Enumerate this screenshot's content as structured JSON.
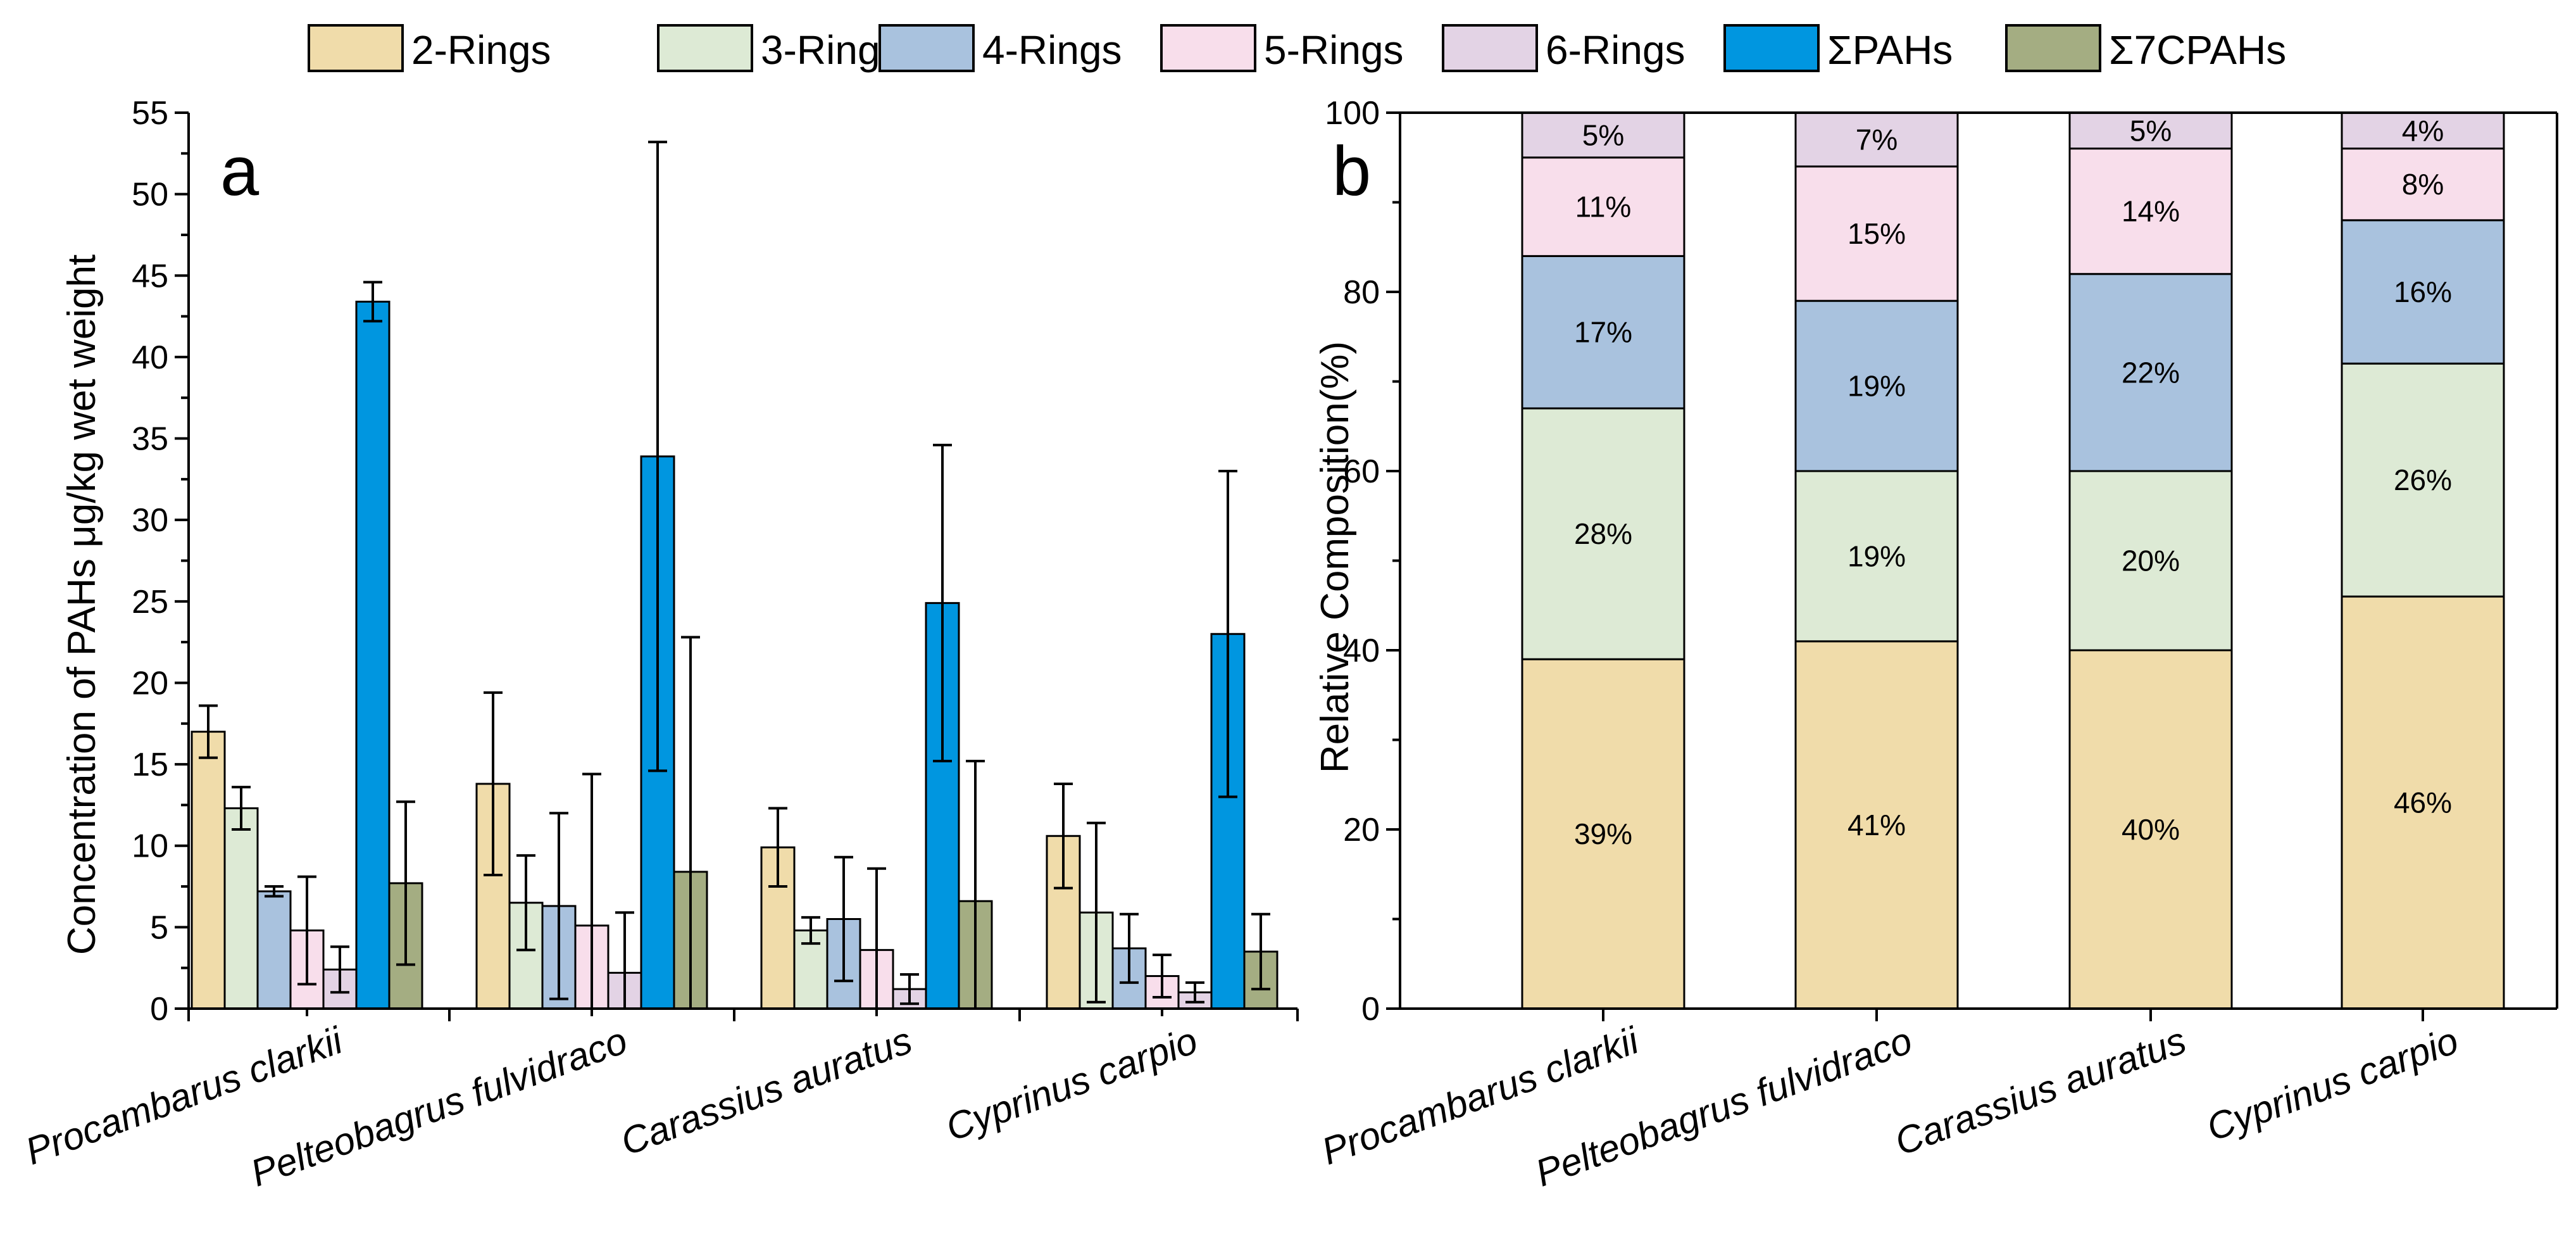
{
  "legend": [
    {
      "name": "2-Rings",
      "color": "#F0DCAA"
    },
    {
      "name": "3-Rings",
      "color": "#DDEAD5"
    },
    {
      "name": "4-Rings",
      "color": "#A9C2DE"
    },
    {
      "name": "5-Rings",
      "color": "#F8DEEB"
    },
    {
      "name": "6-Rings",
      "color": "#E3D3E5"
    },
    {
      "name": "ΣPAHs",
      "color": "#0096E0"
    },
    {
      "name": "Σ7CPAHs",
      "color": "#A4AD82"
    }
  ],
  "chart_data": [
    {
      "type": "bar",
      "panel": "a",
      "ylabel": "Concentration of PAHs μg/kg wet weight",
      "ylim": [
        0,
        55
      ],
      "yticks": [
        "0",
        "5",
        "10",
        "15",
        "20",
        "25",
        "30",
        "35",
        "40",
        "45",
        "50",
        "55"
      ],
      "categories": [
        "Procambarus clarkii",
        "Pelteobagrus fulvidraco",
        "Carassius auratus",
        "Cyprinus carpio"
      ],
      "series": [
        {
          "name": "2-Rings",
          "values": [
            17.0,
            13.8,
            9.9,
            10.6
          ],
          "errors": [
            1.6,
            5.6,
            2.4,
            3.2
          ]
        },
        {
          "name": "3-Rings",
          "values": [
            12.3,
            6.5,
            4.8,
            5.9
          ],
          "errors": [
            1.3,
            2.9,
            0.8,
            5.5
          ]
        },
        {
          "name": "4-Rings",
          "values": [
            7.2,
            6.3,
            5.5,
            3.7
          ],
          "errors": [
            0.3,
            5.7,
            3.8,
            2.1
          ]
        },
        {
          "name": "5-Rings",
          "values": [
            4.8,
            5.1,
            3.6,
            2.0
          ],
          "errors": [
            3.3,
            9.3,
            5.0,
            1.3
          ]
        },
        {
          "name": "6-Rings",
          "values": [
            2.4,
            2.2,
            1.2,
            1.0
          ],
          "errors": [
            1.4,
            3.7,
            0.9,
            0.6
          ]
        },
        {
          "name": "ΣPAHs",
          "values": [
            43.4,
            33.9,
            24.9,
            23.0
          ],
          "errors": [
            1.2,
            19.3,
            9.7,
            10.0
          ]
        },
        {
          "name": "Σ7CPAHs",
          "values": [
            7.7,
            8.4,
            6.6,
            3.5
          ],
          "errors": [
            5.0,
            14.4,
            8.6,
            2.3
          ]
        }
      ]
    },
    {
      "type": "bar",
      "stacked": true,
      "panel": "b",
      "ylabel": "Relative Composition(%)",
      "ylim": [
        0,
        100
      ],
      "yticks": [
        "0",
        "20",
        "40",
        "60",
        "80",
        "100"
      ],
      "categories": [
        "Procambarus clarkii",
        "Pelteobagrus fulvidraco",
        "Carassius auratus",
        "Cyprinus carpio"
      ],
      "series": [
        {
          "name": "2-Rings",
          "values": [
            39,
            41,
            40,
            46
          ],
          "labels": [
            "39%",
            "41%",
            "40%",
            "46%"
          ]
        },
        {
          "name": "3-Rings",
          "values": [
            28,
            19,
            20,
            26
          ],
          "labels": [
            "28%",
            "19%",
            "20%",
            "26%"
          ]
        },
        {
          "name": "4-Rings",
          "values": [
            17,
            19,
            22,
            16
          ],
          "labels": [
            "17%",
            "19%",
            "22%",
            "16%"
          ]
        },
        {
          "name": "5-Rings",
          "values": [
            11,
            15,
            14,
            8
          ],
          "labels": [
            "11%",
            "15%",
            "14%",
            "8%"
          ]
        },
        {
          "name": "6-Rings",
          "values": [
            5,
            7,
            5,
            4
          ],
          "labels": [
            "5%",
            "7%",
            "5%",
            "4%"
          ]
        }
      ]
    }
  ]
}
